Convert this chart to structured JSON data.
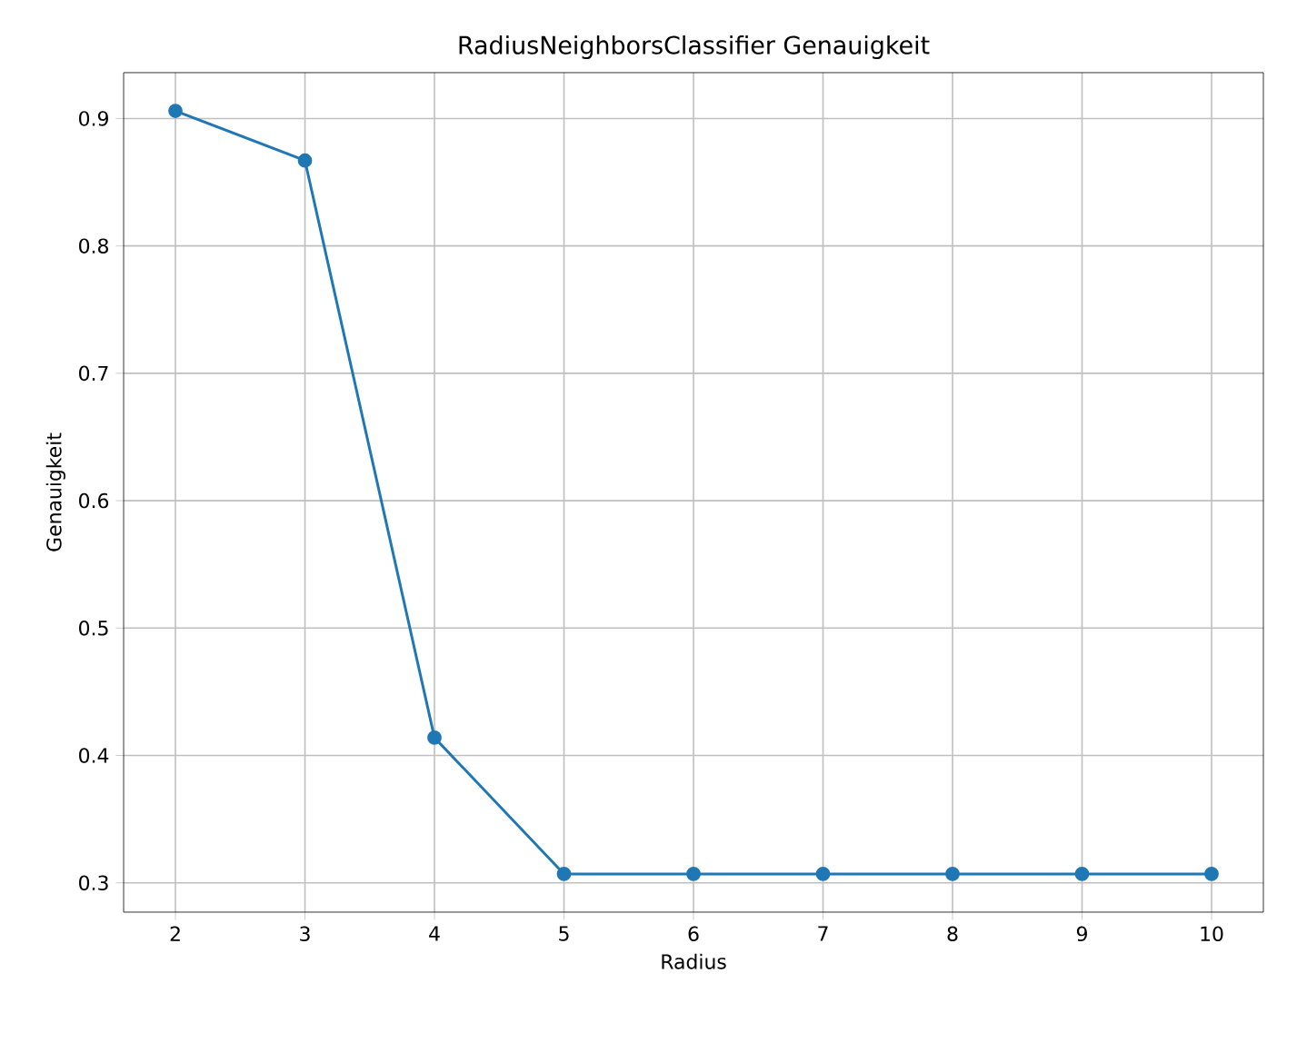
{
  "chart_data": {
    "type": "line",
    "title": "RadiusNeighborsClassifier Genauigkeit",
    "xlabel": "Radius",
    "ylabel": "Genauigkeit",
    "x": [
      2,
      3,
      4,
      5,
      6,
      7,
      8,
      9,
      10
    ],
    "series": [
      {
        "color": "#1f77b4",
        "values": [
          0.906,
          0.867,
          0.414,
          0.307,
          0.307,
          0.307,
          0.307,
          0.307,
          0.307
        ]
      }
    ],
    "xlim": [
      1.6,
      10.4
    ],
    "ylim": [
      0.277,
      0.936
    ],
    "xticks": [
      2,
      3,
      4,
      5,
      6,
      7,
      8,
      9,
      10
    ],
    "yticks": [
      0.3,
      0.4,
      0.5,
      0.6,
      0.7,
      0.8,
      0.9
    ],
    "grid": true,
    "marker": "circle",
    "line_style": "solid"
  }
}
